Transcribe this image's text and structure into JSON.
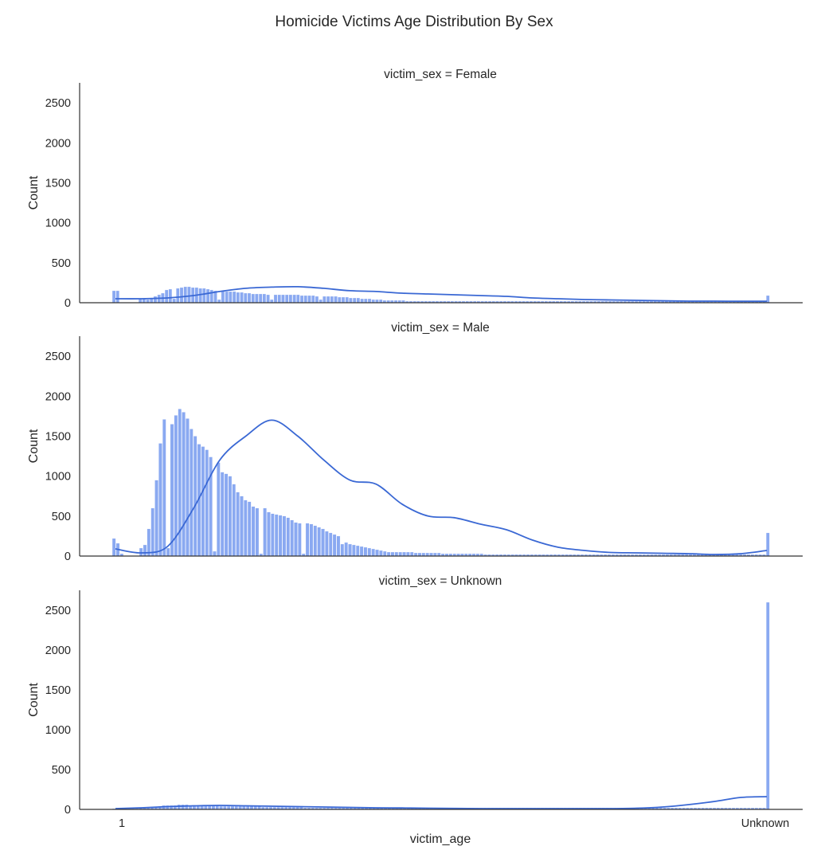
{
  "chart_data": {
    "type": "bar",
    "title": "Homicide Victims Age Distribution By Sex",
    "xlabel": "victim_age",
    "ylabel": "Count",
    "x_tick_labels": [
      "1",
      "Unknown"
    ],
    "y_ticks": [
      0,
      500,
      1000,
      1500,
      2000,
      2500
    ],
    "ylim": [
      0,
      2750
    ],
    "bar_color": "#6d93ee",
    "kde_color": "#3a68d4",
    "grid": false,
    "panels": [
      {
        "title": "victim_sex = Female",
        "values": [
          150,
          150,
          0,
          0,
          0,
          0,
          0,
          50,
          50,
          40,
          60,
          80,
          100,
          120,
          160,
          170,
          50,
          180,
          190,
          200,
          200,
          190,
          190,
          180,
          180,
          170,
          160,
          150,
          40,
          150,
          140,
          140,
          140,
          130,
          130,
          120,
          120,
          110,
          110,
          110,
          110,
          100,
          40,
          100,
          100,
          100,
          100,
          100,
          100,
          100,
          90,
          90,
          90,
          90,
          80,
          40,
          80,
          80,
          80,
          80,
          70,
          70,
          70,
          60,
          60,
          60,
          50,
          50,
          50,
          40,
          40,
          40,
          30,
          30,
          30,
          30,
          30,
          30,
          20,
          20,
          20,
          20,
          20,
          20,
          20,
          20,
          20,
          20,
          20,
          20,
          20,
          20,
          20,
          20,
          20,
          20,
          20,
          20,
          20,
          20,
          20,
          20,
          20,
          20,
          20,
          20,
          20,
          20,
          20,
          20,
          20,
          20,
          20,
          20,
          20,
          20,
          20,
          20,
          20,
          20,
          20,
          20,
          20,
          20,
          20,
          20,
          20,
          20,
          20,
          20,
          20,
          20,
          20,
          20,
          20,
          20,
          20,
          20,
          20,
          20,
          20,
          20,
          20,
          20,
          20,
          20,
          20,
          20,
          20,
          20,
          20,
          20,
          20,
          20,
          20,
          20,
          20,
          20,
          20,
          20,
          20,
          20,
          20,
          20,
          20,
          20,
          20,
          20,
          20,
          20,
          20,
          20,
          20,
          20,
          90
        ],
        "kde": [
          50,
          50,
          60,
          90,
          140,
          180,
          195,
          200,
          180,
          150,
          140,
          120,
          110,
          100,
          90,
          80,
          60,
          50,
          40,
          35,
          30,
          25,
          20,
          20,
          18,
          18
        ]
      },
      {
        "title": "victim_sex = Male",
        "values": [
          220,
          160,
          30,
          0,
          0,
          0,
          0,
          100,
          140,
          340,
          600,
          950,
          1410,
          1710,
          100,
          1650,
          1760,
          1840,
          1800,
          1720,
          1590,
          1500,
          1400,
          1370,
          1330,
          1240,
          60,
          1170,
          1050,
          1030,
          1000,
          900,
          800,
          750,
          700,
          680,
          620,
          600,
          30,
          600,
          550,
          530,
          520,
          510,
          500,
          480,
          450,
          420,
          410,
          30,
          410,
          400,
          380,
          360,
          340,
          310,
          290,
          270,
          250,
          150,
          170,
          150,
          140,
          130,
          120,
          110,
          100,
          90,
          80,
          70,
          60,
          50,
          50,
          50,
          50,
          50,
          50,
          50,
          40,
          40,
          40,
          40,
          40,
          40,
          40,
          30,
          30,
          30,
          30,
          30,
          30,
          30,
          30,
          30,
          30,
          30,
          20,
          20,
          20,
          20,
          20,
          20,
          20,
          20,
          20,
          20,
          20,
          20,
          20,
          20,
          20,
          20,
          20,
          20,
          20,
          20,
          20,
          20,
          20,
          20,
          20,
          20,
          20,
          20,
          20,
          20,
          20,
          20,
          20,
          20,
          20,
          20,
          20,
          20,
          20,
          20,
          20,
          20,
          20,
          20,
          20,
          20,
          20,
          20,
          20,
          20,
          20,
          20,
          20,
          20,
          20,
          20,
          20,
          20,
          20,
          20,
          20,
          20,
          20,
          20,
          20,
          20,
          20,
          20,
          20,
          20,
          20,
          20,
          20,
          290
        ],
        "kde": [
          90,
          40,
          120,
          600,
          1200,
          1500,
          1700,
          1500,
          1200,
          950,
          900,
          650,
          500,
          480,
          400,
          330,
          200,
          110,
          70,
          45,
          40,
          35,
          30,
          20,
          30,
          70
        ]
      },
      {
        "title": "victim_sex = Unknown",
        "values": [
          10,
          10,
          10,
          10,
          10,
          10,
          10,
          20,
          20,
          20,
          30,
          30,
          40,
          50,
          50,
          50,
          50,
          60,
          60,
          60,
          50,
          50,
          50,
          50,
          50,
          50,
          50,
          50,
          40,
          40,
          40,
          40,
          40,
          40,
          40,
          40,
          40,
          40,
          40,
          30,
          30,
          30,
          30,
          30,
          30,
          30,
          30,
          30,
          30,
          30,
          20,
          20,
          20,
          20,
          20,
          20,
          20,
          20,
          20,
          20,
          20,
          20,
          20,
          20,
          20,
          20,
          20,
          20,
          20,
          20,
          20,
          20,
          20,
          20,
          20,
          20,
          20,
          20,
          20,
          20,
          20,
          20,
          20,
          20,
          20,
          20,
          20,
          20,
          20,
          20,
          20,
          20,
          20,
          20,
          20,
          20,
          20,
          20,
          20,
          20,
          20,
          20,
          20,
          20,
          20,
          20,
          20,
          20,
          20,
          20,
          20,
          20,
          20,
          20,
          20,
          20,
          20,
          20,
          20,
          20,
          20,
          20,
          20,
          20,
          20,
          20,
          20,
          20,
          20,
          20,
          20,
          20,
          20,
          20,
          20,
          20,
          20,
          20,
          20,
          20,
          20,
          20,
          20,
          20,
          20,
          20,
          20,
          20,
          20,
          20,
          20,
          20,
          20,
          20,
          20,
          20,
          20,
          20,
          20,
          20,
          20,
          20,
          20,
          20,
          20,
          20,
          20,
          20,
          20,
          20,
          20,
          2600
        ],
        "kde": [
          10,
          20,
          35,
          45,
          50,
          45,
          40,
          35,
          30,
          25,
          20,
          18,
          15,
          12,
          10,
          10,
          10,
          10,
          10,
          10,
          15,
          30,
          60,
          100,
          150,
          160
        ]
      }
    ]
  }
}
